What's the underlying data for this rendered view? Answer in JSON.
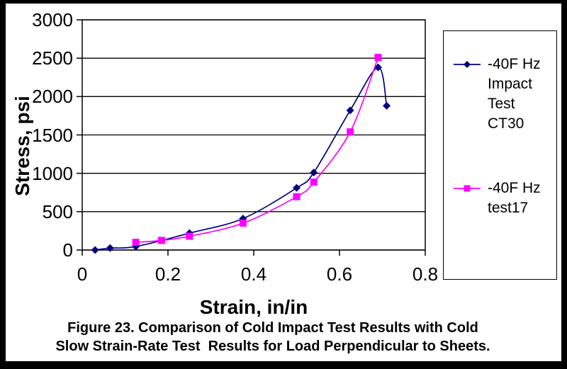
{
  "figure": {
    "caption_line1": "Figure 23. Comparison of Cold Impact Test Results with Cold",
    "caption_line2": "Slow Strain-Rate Test  Results for Load Perpendicular to Sheets."
  },
  "chart_data": {
    "type": "line",
    "title": "",
    "xlabel": "Strain, in/in",
    "ylabel": "Stress, psi",
    "xlim": [
      0,
      0.8
    ],
    "ylim": [
      0,
      3000
    ],
    "xtick_values": [
      0,
      0.2,
      0.4,
      0.6,
      0.8
    ],
    "xtick_labels": [
      "0",
      "0.2",
      "0.4",
      "0.6",
      "0.8"
    ],
    "ytick_values": [
      0,
      500,
      1000,
      1500,
      2000,
      2500,
      3000
    ],
    "ytick_labels": [
      "0",
      "500",
      "1000",
      "1500",
      "2000",
      "2500",
      "3000"
    ],
    "grid": "horizontal",
    "legend_position": "right",
    "plot_background": "#ffffff",
    "series": [
      {
        "name": "-40F Hz Impact Test CT30",
        "label_lines": [
          "-40F Hz",
          "Impact",
          "Test",
          "CT30"
        ],
        "color": "#000080",
        "marker": "diamond",
        "smooth": true,
        "points": [
          [
            0.03,
            0
          ],
          [
            0.065,
            25
          ],
          [
            0.125,
            45
          ],
          [
            0.25,
            220
          ],
          [
            0.375,
            410
          ],
          [
            0.5,
            810
          ],
          [
            0.54,
            1010
          ],
          [
            0.625,
            1820
          ],
          [
            0.69,
            2380
          ],
          [
            0.71,
            1880
          ]
        ]
      },
      {
        "name": "-40F Hz test17",
        "label_lines": [
          "-40F Hz",
          "test17"
        ],
        "color": "#FF00FF",
        "marker": "square",
        "smooth": true,
        "points": [
          [
            0.125,
            100
          ],
          [
            0.185,
            125
          ],
          [
            0.25,
            180
          ],
          [
            0.375,
            350
          ],
          [
            0.5,
            695
          ],
          [
            0.54,
            885
          ],
          [
            0.625,
            1540
          ],
          [
            0.69,
            2510
          ]
        ]
      }
    ]
  }
}
